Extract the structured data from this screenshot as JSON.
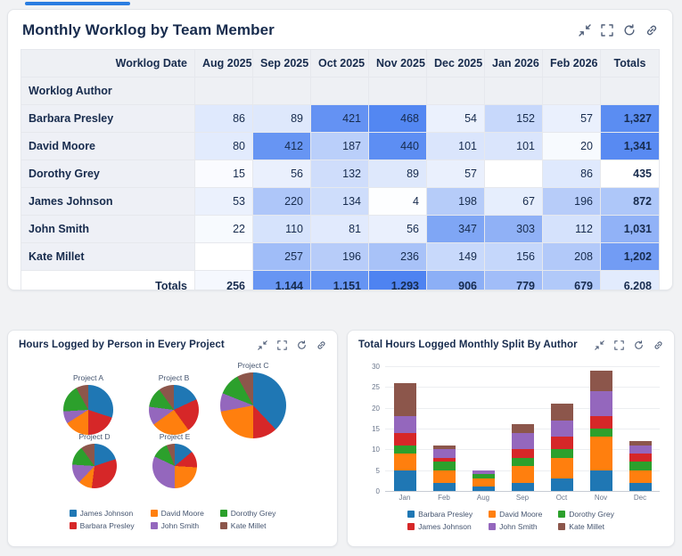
{
  "page": {
    "accent": "#2a7de1",
    "heat_color_rgb": "59,118,240",
    "text_color": "#172b4d"
  },
  "panel_actions": [
    "minimize-icon",
    "fullscreen-icon",
    "refresh-icon",
    "link-icon"
  ],
  "worklog_panel": {
    "title": "Monthly Worklog by Team Member"
  },
  "pies_panel": {
    "title": "Hours Logged by Person in Every Project"
  },
  "bars_panel": {
    "title": "Total Hours Logged Monthly Split By Author"
  },
  "chart_data": [
    {
      "type": "table",
      "subtype": "heatmap-pivot",
      "title": "Monthly Worklog by Team Member",
      "col_dimension": "Worklog Date",
      "row_dimension": "Worklog Author",
      "columns": [
        "Aug 2025",
        "Sep 2025",
        "Oct 2025",
        "Nov 2025",
        "Dec 2025",
        "Jan 2026",
        "Feb 2026"
      ],
      "totals_label": "Totals",
      "rows": [
        {
          "author": "Barbara Presley",
          "values": [
            86,
            89,
            421,
            468,
            54,
            152,
            57
          ],
          "total": 1327
        },
        {
          "author": "David Moore",
          "values": [
            80,
            412,
            187,
            440,
            101,
            101,
            20
          ],
          "total": 1341
        },
        {
          "author": "Dorothy Grey",
          "values": [
            15,
            56,
            132,
            89,
            57,
            null,
            86
          ],
          "total": 435
        },
        {
          "author": "James Johnson",
          "values": [
            53,
            220,
            134,
            4,
            198,
            67,
            196
          ],
          "total": 872
        },
        {
          "author": "John Smith",
          "values": [
            22,
            110,
            81,
            56,
            347,
            303,
            112
          ],
          "total": 1031
        },
        {
          "author": "Kate Millet",
          "values": [
            null,
            257,
            196,
            236,
            149,
            156,
            208
          ],
          "total": 1202
        }
      ],
      "totals_row": {
        "label": "Totals",
        "values": [
          256,
          1144,
          1151,
          1293,
          906,
          779,
          679
        ],
        "grand_total": 6208
      }
    },
    {
      "type": "pie",
      "title": "Hours Logged by Person in Every Project",
      "people": [
        "James Johnson",
        "Barbara Presley",
        "David Moore",
        "John Smith",
        "Dorothy Grey",
        "Kate Millet"
      ],
      "colors": {
        "James Johnson": "#1f77b4",
        "Barbara Presley": "#d62728",
        "David Moore": "#ff7f0e",
        "John Smith": "#9467bd",
        "Dorothy Grey": "#2ca02c",
        "Kate Millet": "#8c564b"
      },
      "legend_order": [
        "James Johnson",
        "David Moore",
        "Dorothy Grey",
        "Barbara Presley",
        "John Smith",
        "Kate Millet"
      ],
      "projects": [
        {
          "name": "Project A",
          "size": 56,
          "values": [
            30,
            20,
            16,
            8,
            18,
            8
          ]
        },
        {
          "name": "Project B",
          "size": 56,
          "values": [
            18,
            22,
            25,
            12,
            13,
            10
          ]
        },
        {
          "name": "Project C",
          "size": 74,
          "values": [
            38,
            12,
            22,
            9,
            11,
            8
          ]
        },
        {
          "name": "Project D",
          "size": 50,
          "values": [
            20,
            32,
            10,
            14,
            14,
            10
          ]
        },
        {
          "name": "Project E",
          "size": 50,
          "values": [
            14,
            12,
            24,
            32,
            12,
            6
          ]
        }
      ]
    },
    {
      "type": "bar",
      "subtype": "stacked",
      "title": "Total Hours Logged Monthly Split By Author",
      "categories": [
        "Jan",
        "Feb",
        "Aug",
        "Sep",
        "Oct",
        "Nov",
        "Dec"
      ],
      "y_ticks": [
        0,
        5,
        10,
        15,
        20,
        25,
        30
      ],
      "ylim": [
        0,
        30
      ],
      "series": [
        {
          "name": "Barbara Presley",
          "color": "#1f77b4",
          "values": [
            5,
            2,
            1,
            2,
            3,
            5,
            2
          ]
        },
        {
          "name": "David Moore",
          "color": "#ff7f0e",
          "values": [
            4,
            3,
            2,
            4,
            5,
            8,
            3
          ]
        },
        {
          "name": "Dorothy Grey",
          "color": "#2ca02c",
          "values": [
            2,
            2,
            1,
            2,
            2,
            2,
            2
          ]
        },
        {
          "name": "James Johnson",
          "color": "#d62728",
          "values": [
            3,
            1,
            0,
            2,
            3,
            3,
            2
          ]
        },
        {
          "name": "John Smith",
          "color": "#9467bd",
          "values": [
            4,
            2,
            1,
            4,
            4,
            6,
            2
          ]
        },
        {
          "name": "Kate Millet",
          "color": "#8c564b",
          "values": [
            8,
            1,
            0,
            2,
            4,
            5,
            1
          ]
        }
      ],
      "legend_order": [
        "Barbara Presley",
        "David Moore",
        "Dorothy Grey",
        "James Johnson",
        "John Smith",
        "Kate Millet"
      ]
    }
  ]
}
